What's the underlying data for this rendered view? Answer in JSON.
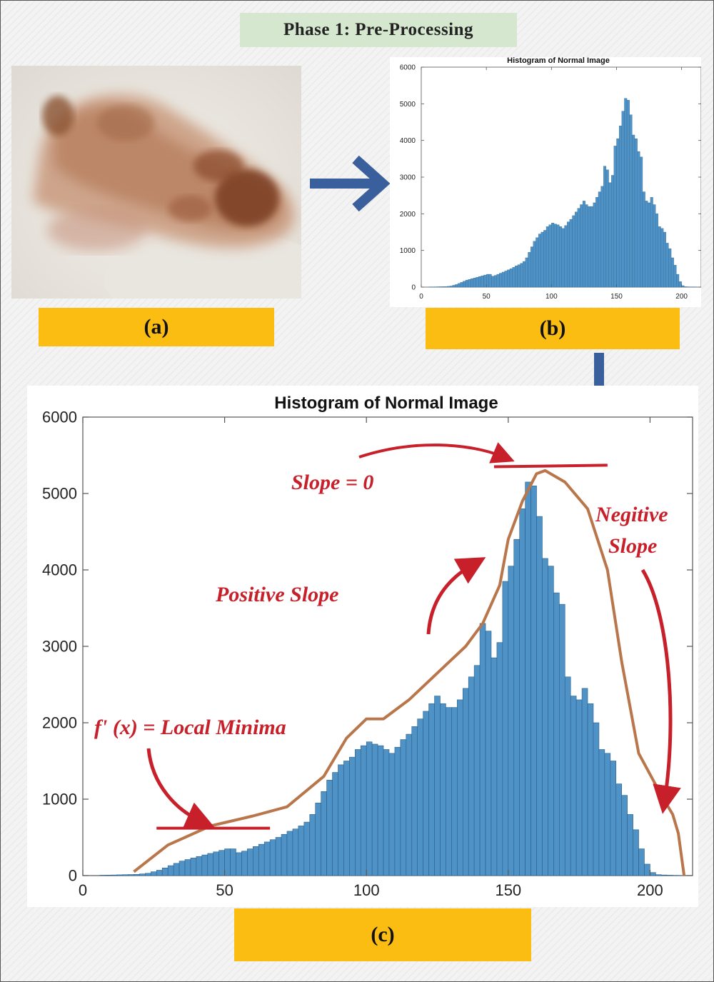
{
  "phase_title": "Phase 1: Pre-Processing",
  "labels": {
    "a": "(a)",
    "b": "(b)",
    "c": "(c)"
  },
  "colors": {
    "bar": "#4f92c6",
    "bar_edge": "#2a5f8c",
    "annotation": "#c8202a",
    "envelope": "#b8764a",
    "label_bg": "#fbbd12",
    "arrow": "#3a5f9d"
  },
  "annotations": {
    "slope_zero": "Slope = 0",
    "positive_slope": "Positive Slope",
    "negative_slope_line1": "Negitive",
    "negative_slope_line2": "Slope",
    "local_minima": "f' (x) = Local Minima"
  },
  "chart_data": [
    {
      "type": "bar",
      "title": "Histogram of Normal Image",
      "xlabel": "",
      "ylabel": "",
      "xlim": [
        0,
        215
      ],
      "ylim": [
        0,
        6000
      ],
      "xticks": [
        0,
        50,
        100,
        150,
        200
      ],
      "yticks": [
        0,
        1000,
        2000,
        3000,
        4000,
        5000,
        6000
      ],
      "bin_width": 2,
      "bin_centers": [
        7,
        9,
        11,
        13,
        15,
        17,
        19,
        21,
        23,
        25,
        27,
        29,
        31,
        33,
        35,
        37,
        39,
        41,
        43,
        45,
        47,
        49,
        51,
        53,
        55,
        57,
        59,
        61,
        63,
        65,
        67,
        69,
        71,
        73,
        75,
        77,
        79,
        81,
        83,
        85,
        87,
        89,
        91,
        93,
        95,
        97,
        99,
        101,
        103,
        105,
        107,
        109,
        111,
        113,
        115,
        117,
        119,
        121,
        123,
        125,
        127,
        129,
        131,
        133,
        135,
        137,
        139,
        141,
        143,
        145,
        147,
        149,
        151,
        153,
        155,
        157,
        159,
        161,
        163,
        165,
        167,
        169,
        171,
        173,
        175,
        177,
        179,
        181,
        183,
        185,
        187,
        189,
        191,
        193,
        195,
        197,
        199,
        201,
        203,
        205,
        207,
        209,
        211
      ],
      "values": [
        5,
        6,
        8,
        10,
        12,
        14,
        16,
        22,
        30,
        50,
        70,
        100,
        130,
        160,
        190,
        210,
        230,
        250,
        270,
        290,
        310,
        330,
        350,
        350,
        300,
        320,
        350,
        380,
        410,
        440,
        470,
        500,
        540,
        580,
        610,
        650,
        700,
        800,
        950,
        1100,
        1250,
        1350,
        1450,
        1500,
        1550,
        1650,
        1700,
        1750,
        1720,
        1700,
        1650,
        1600,
        1680,
        1780,
        1850,
        1950,
        2050,
        2150,
        2250,
        2350,
        2250,
        2200,
        2200,
        2300,
        2450,
        2600,
        2750,
        3300,
        3200,
        2850,
        3050,
        3850,
        4050,
        4400,
        4800,
        5150,
        5100,
        4700,
        4150,
        4050,
        3700,
        3550,
        2600,
        2350,
        2300,
        2450,
        2250,
        2000,
        1650,
        1600,
        1500,
        1200,
        1050,
        800,
        600,
        350,
        150,
        40,
        12,
        8,
        5,
        3,
        2
      ]
    }
  ]
}
